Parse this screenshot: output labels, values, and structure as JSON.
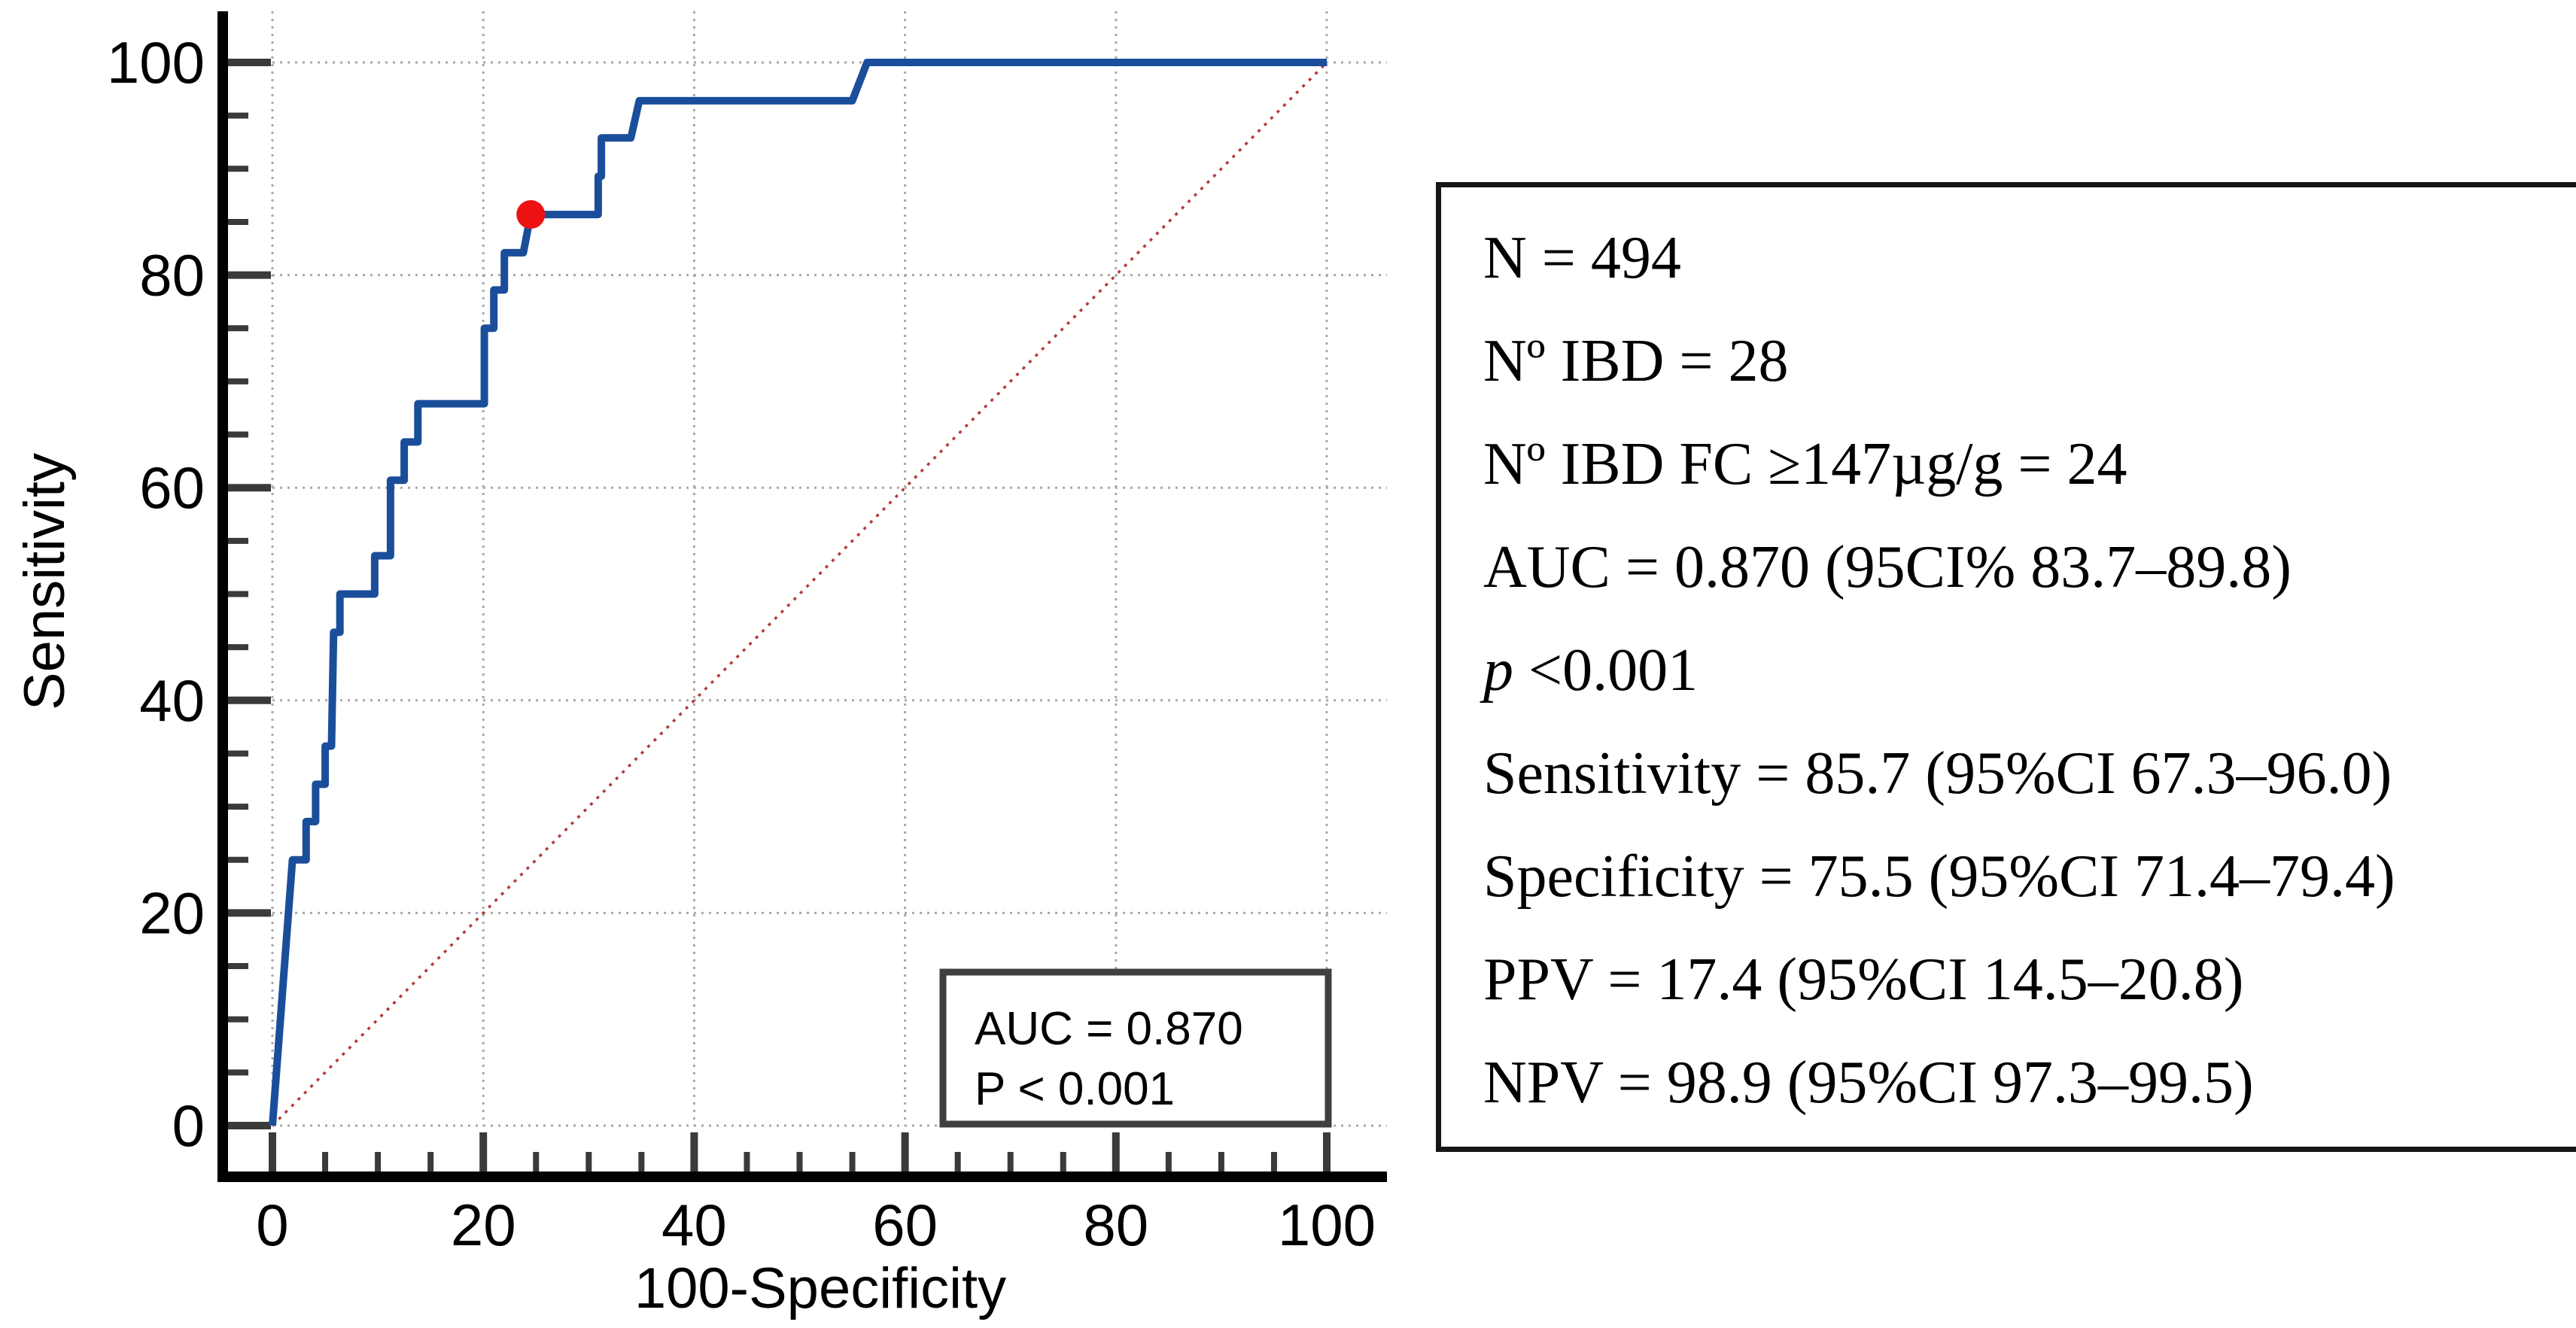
{
  "figure": {
    "background": "#ffffff"
  },
  "chart_data": {
    "type": "line",
    "subtype": "roc-curve",
    "title": "",
    "xlabel": "100-Specificity",
    "ylabel": "Sensitivity",
    "xlim": [
      0,
      100
    ],
    "ylim": [
      0,
      100
    ],
    "x_ticks": [
      0,
      20,
      40,
      60,
      80,
      100
    ],
    "y_ticks": [
      0,
      20,
      40,
      60,
      80,
      100
    ],
    "minor_tick_step": 5,
    "grid": "dotted",
    "series": [
      {
        "name": "ROC curve",
        "color": "#1a4e9b",
        "points": [
          [
            0,
            0
          ],
          [
            1.9,
            25.0
          ],
          [
            3.2,
            25.0
          ],
          [
            3.2,
            28.6
          ],
          [
            4.1,
            28.6
          ],
          [
            4.1,
            32.1
          ],
          [
            5.0,
            32.1
          ],
          [
            5.0,
            35.7
          ],
          [
            5.6,
            35.7
          ],
          [
            5.8,
            46.4
          ],
          [
            6.4,
            46.4
          ],
          [
            6.4,
            50.0
          ],
          [
            9.7,
            50.0
          ],
          [
            9.7,
            53.6
          ],
          [
            11.2,
            53.6
          ],
          [
            11.2,
            60.7
          ],
          [
            12.5,
            60.7
          ],
          [
            12.5,
            64.3
          ],
          [
            13.8,
            64.3
          ],
          [
            13.8,
            67.9
          ],
          [
            20.1,
            67.9
          ],
          [
            20.1,
            75.0
          ],
          [
            21.0,
            75.0
          ],
          [
            21.0,
            78.6
          ],
          [
            22.0,
            78.6
          ],
          [
            22.0,
            82.1
          ],
          [
            23.8,
            82.1
          ],
          [
            24.5,
            85.7
          ],
          [
            30.9,
            85.7
          ],
          [
            30.9,
            89.3
          ],
          [
            31.2,
            89.3
          ],
          [
            31.2,
            92.9
          ],
          [
            34.0,
            92.9
          ],
          [
            34.8,
            96.4
          ],
          [
            55.0,
            96.4
          ],
          [
            56.4,
            100
          ],
          [
            100,
            100
          ]
        ]
      }
    ],
    "reference_diagonal": {
      "from": [
        0,
        0
      ],
      "to": [
        100,
        100
      ],
      "color": "#b23b3b",
      "style": "dotted"
    },
    "operating_point": {
      "x": 24.5,
      "y": 85.7,
      "color": "#ee1111"
    },
    "annotation_box": {
      "lines": [
        "AUC = 0.870",
        "P < 0.001"
      ],
      "border_color": "#3f3f3f"
    },
    "legend_position": "none"
  },
  "stats_panel": {
    "lines": [
      {
        "lead": "",
        "text": "N = 494"
      },
      {
        "lead": "",
        "text": "Nº IBD = 28"
      },
      {
        "lead": "",
        "text": "Nº IBD FC ≥147µg/g = 24"
      },
      {
        "lead": "",
        "text": "AUC = 0.870 (95CI% 83.7–89.8)"
      },
      {
        "lead": "p",
        "text": " <0.001"
      },
      {
        "lead": "",
        "text": "Sensitivity = 85.7 (95%CI 67.3–96.0)"
      },
      {
        "lead": "",
        "text": "Specificity = 75.5 (95%CI 71.4–79.4)"
      },
      {
        "lead": "",
        "text": "PPV = 17.4 (95%CI 14.5–20.8)"
      },
      {
        "lead": "",
        "text": "NPV = 98.9 (95%CI 97.3–99.5)"
      }
    ]
  },
  "colors": {
    "curve": "#1a4e9b",
    "operating_point": "#ee1111",
    "diagonal": "#b23b3b",
    "grid": "#a8a8a8",
    "ticks": "#3a3a3a",
    "spines": "#000000",
    "text": "#000000"
  }
}
